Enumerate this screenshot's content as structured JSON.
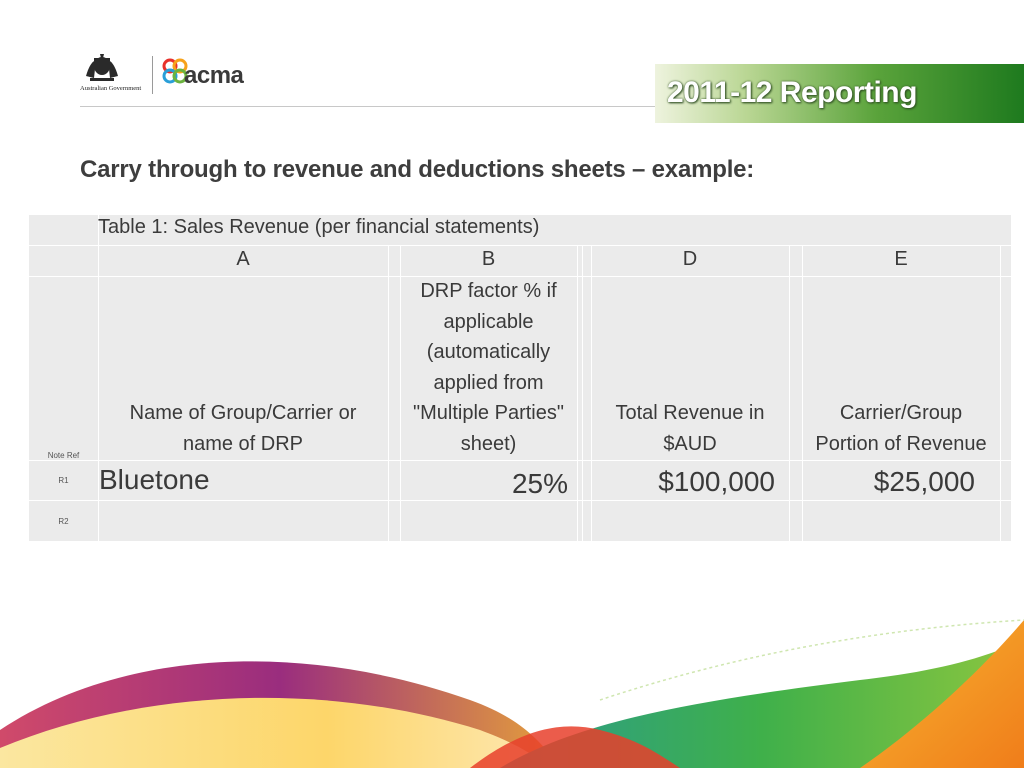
{
  "header": {
    "gov_label": "Australian Government",
    "acma_label": "acma",
    "banner_title": "2011-12 Reporting"
  },
  "heading": "Carry through to revenue and deductions sheets – example:",
  "table": {
    "caption": "Table 1: Sales Revenue (per financial statements)",
    "columns": [
      {
        "letter": "A",
        "header": "Name of Group/Carrier or name of DRP"
      },
      {
        "letter": "B",
        "header": "DRP factor % if applicable (automatically applied from \"Multiple Parties\" sheet)"
      },
      {
        "letter": "D",
        "header": "Total Revenue in $AUD"
      },
      {
        "letter": "E",
        "header": "Carrier/Group Portion of Revenue"
      }
    ],
    "note_ref_label": "Note Ref",
    "rows": [
      {
        "ref": "R1",
        "name": "Bluetone",
        "drp_factor": "25%",
        "total_revenue": "$100,000",
        "portion": "$25,000"
      },
      {
        "ref": "R2",
        "name": "",
        "drp_factor": "",
        "total_revenue": "",
        "portion": ""
      }
    ]
  },
  "colors": {
    "banner_dark": "#1e7a1e",
    "banner_light": "#b9d693",
    "table_fill": "#ebebeb",
    "text": "#3a3a3a"
  }
}
